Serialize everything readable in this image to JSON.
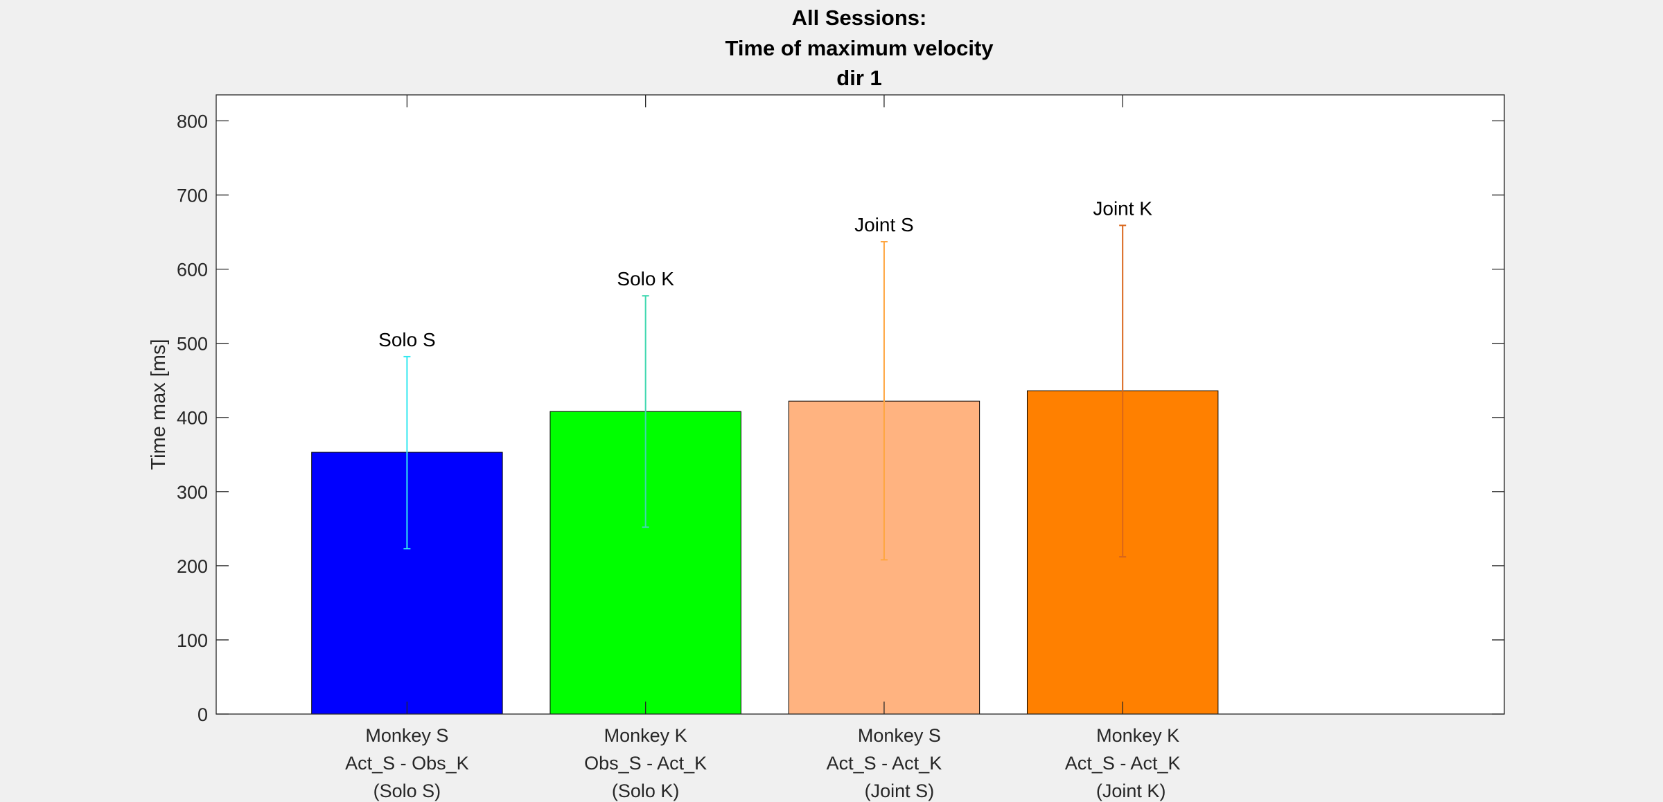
{
  "chart_data": {
    "type": "bar",
    "title": [
      "All Sessions:",
      "Time of maximum velocity",
      "dir 1"
    ],
    "ylabel": "Time max [ms]",
    "xlabel": "",
    "ylim": [
      0,
      835
    ],
    "yticks": [
      0,
      100,
      200,
      300,
      400,
      500,
      600,
      700,
      800
    ],
    "grid": false,
    "legend": "none",
    "categories": [
      [
        "Monkey S",
        "Act_S - Obs_K",
        "(Solo S)"
      ],
      [
        "Monkey K",
        "Obs_S - Act_K",
        "(Solo K)"
      ],
      [
        "Monkey S",
        "Act_S - Act_K",
        "(Joint S)"
      ],
      [
        "Monkey K",
        "Act_S - Act_K",
        "(Joint K)"
      ]
    ],
    "values": [
      353,
      408,
      422,
      436
    ],
    "error_low": [
      223,
      252,
      208,
      212
    ],
    "error_high": [
      482,
      564,
      637,
      659
    ],
    "bar_labels": [
      "Solo S",
      "Solo K",
      "Joint S",
      "Joint K"
    ],
    "bar_colors": [
      "#0000ff",
      "#00ff00",
      "#ffb380",
      "#ff8000"
    ],
    "error_colors": [
      "#33e8f0",
      "#40d8b0",
      "#ffa640",
      "#d9661a"
    ]
  }
}
